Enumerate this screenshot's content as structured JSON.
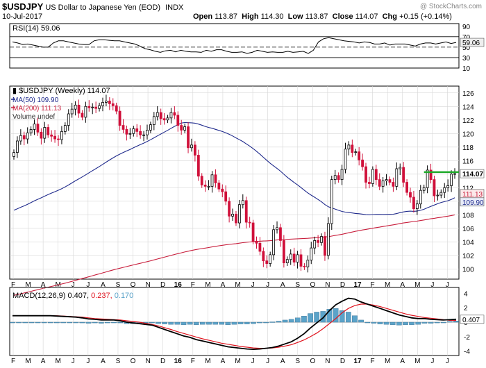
{
  "header": {
    "symbol": "$USDJPY",
    "description": "US Dollar to Japanese Yen (EOD)",
    "exchange": "INDX",
    "date": "10-Jul-2017",
    "watermark": "@ StockCharts.com",
    "open_label": "Open",
    "open_value": "113.87",
    "high_label": "High",
    "high_value": "114.30",
    "low_label": "Low",
    "low_value": "113.87",
    "close_label": "Close",
    "close_value": "114.07",
    "chg_label": "Chg",
    "chg_value": "+0.15 (+0.14%)"
  },
  "colors": {
    "up": "#000000",
    "down": "#d0103a",
    "ma50": "#1f2a8c",
    "ma200": "#c81e3c",
    "macd": "#000000",
    "signal": "#e0141e",
    "hist": "#5ba3c9",
    "resistance": "#1faa2a",
    "grid": "#d6d6d6",
    "tag_ma50_bg": "#e8ecf8",
    "tag_ma200_bg": "#fbe9ea"
  },
  "chart_data": [
    {
      "type": "line",
      "name": "rsi",
      "legend": "RSI(14) 59.06",
      "y_ticks": [
        "90",
        "70",
        "50",
        "30",
        "10"
      ],
      "ylim": [
        10,
        95
      ],
      "reference_lines": [
        70,
        50,
        30
      ],
      "value_tag": "59.06",
      "values": [
        60,
        58,
        55,
        56,
        54,
        52,
        50,
        50,
        58,
        62,
        62,
        60,
        58,
        56,
        55,
        55,
        62,
        64,
        64,
        63,
        62,
        62,
        60,
        58,
        56,
        52,
        47,
        45,
        42,
        40,
        43,
        44,
        41,
        44,
        42,
        41,
        41,
        40,
        44,
        42,
        45,
        45,
        42,
        40,
        40,
        41,
        38,
        40,
        44,
        42,
        40,
        41,
        40,
        40,
        42,
        40,
        41,
        42,
        38,
        44,
        60,
        66,
        68,
        66,
        64,
        62,
        61,
        60,
        58,
        60,
        59,
        56,
        56,
        58,
        54,
        56,
        56,
        56,
        54,
        52,
        56,
        58,
        58,
        56,
        58,
        60,
        57,
        59.06
      ]
    },
    {
      "type": "candlestick",
      "name": "price",
      "legend": "$USDJPY (Weekly) 114.07",
      "legend_ma50": "MA(50) 109.90",
      "legend_ma200": "MA(200) 111.13",
      "legend_volume": "Volume undef",
      "y_ticks": [
        "126",
        "124",
        "122",
        "120",
        "118",
        "116",
        "114",
        "112",
        "110",
        "108",
        "106",
        "104",
        "102",
        "100"
      ],
      "ylim": [
        98.5,
        127
      ],
      "x_labels": [
        "F",
        "M",
        "A",
        "M",
        "J",
        "J",
        "A",
        "S",
        "O",
        "N",
        "D",
        "16",
        "F",
        "M",
        "A",
        "M",
        "J",
        "J",
        "A",
        "S",
        "O",
        "N",
        "D",
        "17",
        "F",
        "M",
        "A",
        "M",
        "J",
        "J"
      ],
      "tags": [
        "114.07",
        "111.13",
        "109.90"
      ],
      "resistance_level": 114.3,
      "closes": [
        117.2,
        118.9,
        119.7,
        119.2,
        120.1,
        120.6,
        121.4,
        120.2,
        119.3,
        120.9,
        119.8,
        119.6,
        119.2,
        119.1,
        120.3,
        121.2,
        122.9,
        123.6,
        124.2,
        123.0,
        122.4,
        124.0,
        123.8,
        123.9,
        123.7,
        124.1,
        124.6,
        124.8,
        124.4,
        124.1,
        123.3,
        121.2,
        120.6,
        119.9,
        120.0,
        120.7,
        120.3,
        119.8,
        119.8,
        120.5,
        121.3,
        122.5,
        123.1,
        122.2,
        122.0,
        122.3,
        123.1,
        122.7,
        121.2,
        120.5,
        121.0,
        117.9,
        118.3,
        116.8,
        113.7,
        112.4,
        112.2,
        112.2,
        113.9,
        112.7,
        111.8,
        111.4,
        110.0,
        107.8,
        108.1,
        106.8,
        109.5,
        110.1,
        106.9,
        106.8,
        104.1,
        103.8,
        102.6,
        101.2,
        100.8,
        102.1,
        105.8,
        106.1,
        104.2,
        100.9,
        101.4,
        102.2,
        101.0,
        102.1,
        100.4,
        100.3,
        101.3,
        103.1,
        104.2,
        103.9,
        104.8,
        102.0,
        106.7,
        113.2,
        113.8,
        113.2,
        114.7,
        117.7,
        118.3,
        117.2,
        117.3,
        116.1,
        115.1,
        112.8,
        112.6,
        114.7,
        113.2,
        112.2,
        113.0,
        113.2,
        112.8,
        112.2,
        114.8,
        115.0,
        112.8,
        111.3,
        110.6,
        108.9,
        109.6,
        111.6,
        112.0,
        114.6,
        113.2,
        110.8,
        110.9,
        111.3,
        112.0,
        112.3,
        114.0,
        114.07
      ]
    },
    {
      "type": "line",
      "name": "macd",
      "legend": "MACD(12,26,9)",
      "legend_macd_value": "0.407,",
      "legend_signal_value": "0.237,",
      "legend_hist_value": "0.170",
      "y_ticks": [
        "4",
        "2",
        "0",
        "-2",
        "-4"
      ],
      "ylim": [
        -4.6,
        4.8
      ],
      "value_tag": "0.407",
      "x_labels": [
        "F",
        "M",
        "A",
        "M",
        "J",
        "J",
        "A",
        "S",
        "O",
        "N",
        "D",
        "16",
        "F",
        "M",
        "A",
        "M",
        "J",
        "J",
        "A",
        "S",
        "O",
        "N",
        "D",
        "17",
        "F",
        "M",
        "A",
        "M",
        "J",
        "J"
      ],
      "macd_values": [
        0.9,
        0.9,
        0.9,
        0.9,
        0.9,
        0.9,
        0.9,
        0.85,
        0.8,
        0.75,
        0.7,
        0.6,
        0.45,
        0.4,
        0.3,
        0.3,
        0.3,
        0.2,
        0.0,
        -0.1,
        -0.2,
        -0.3,
        -0.4,
        -0.7,
        -1.0,
        -1.3,
        -1.6,
        -1.9,
        -2.1,
        -2.4,
        -2.6,
        -2.8,
        -3.0,
        -3.2,
        -3.4,
        -3.5,
        -3.6,
        -3.7,
        -3.75,
        -3.7,
        -3.6,
        -3.5,
        -3.3,
        -3.0,
        -2.7,
        -2.2,
        -1.6,
        -0.8,
        -0.1,
        0.6,
        1.6,
        2.4,
        2.9,
        3.3,
        3.2,
        2.8,
        2.5,
        2.2,
        1.9,
        1.6,
        1.3,
        1.0,
        0.8,
        0.6,
        0.5,
        0.5,
        0.4,
        0.35,
        0.3,
        0.35,
        0.407
      ],
      "signal_values": [
        0.9,
        0.9,
        0.9,
        0.9,
        0.9,
        0.9,
        0.9,
        0.9,
        0.85,
        0.8,
        0.75,
        0.7,
        0.6,
        0.5,
        0.45,
        0.4,
        0.35,
        0.3,
        0.2,
        0.1,
        0.0,
        -0.15,
        -0.3,
        -0.5,
        -0.75,
        -1.0,
        -1.3,
        -1.55,
        -1.8,
        -2.05,
        -2.3,
        -2.5,
        -2.7,
        -2.9,
        -3.05,
        -3.2,
        -3.35,
        -3.45,
        -3.55,
        -3.6,
        -3.6,
        -3.55,
        -3.45,
        -3.3,
        -3.1,
        -2.8,
        -2.45,
        -2.0,
        -1.5,
        -0.9,
        -0.2,
        0.5,
        1.3,
        1.9,
        2.3,
        2.5,
        2.5,
        2.35,
        2.15,
        1.9,
        1.65,
        1.4,
        1.15,
        0.95,
        0.8,
        0.65,
        0.55,
        0.45,
        0.35,
        0.25,
        0.237
      ]
    }
  ]
}
